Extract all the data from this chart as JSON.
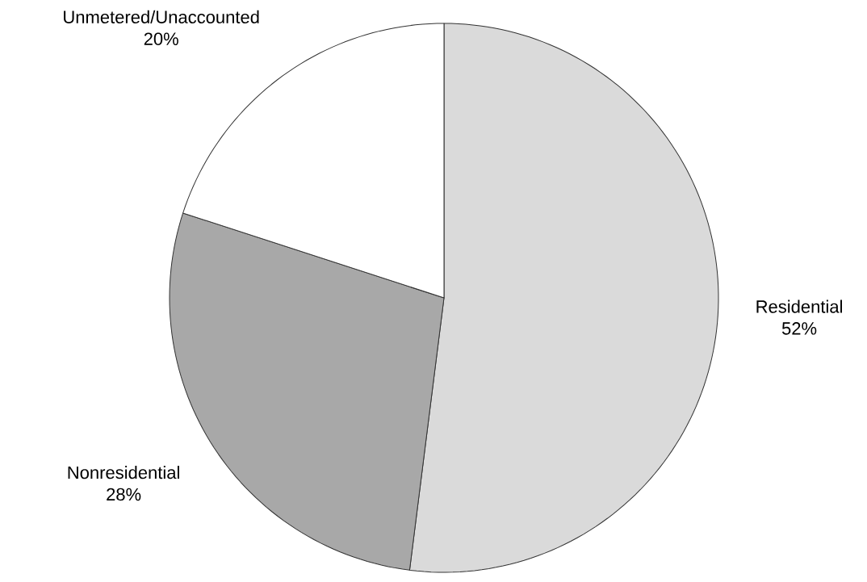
{
  "chart_data": {
    "type": "pie",
    "categories": [
      "Residential",
      "Nonresidential",
      "Unmetered/Unaccounted"
    ],
    "values": [
      52,
      28,
      20
    ],
    "value_labels": [
      "52%",
      "28%",
      "20%"
    ],
    "colors": [
      "#dadada",
      "#a8a8a8",
      "#ffffff"
    ]
  }
}
